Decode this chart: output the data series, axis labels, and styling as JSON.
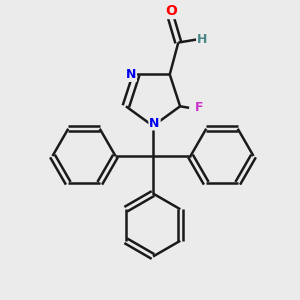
{
  "background_color": "#ebebeb",
  "bond_color": "#1a1a1a",
  "atom_colors": {
    "O": "#ff0000",
    "N": "#0000ee",
    "F": "#cc33cc",
    "C": "#1a1a1a",
    "H": "#4a8888"
  },
  "figsize": [
    3.0,
    3.0
  ],
  "dpi": 100,
  "xlim": [
    0,
    10
  ],
  "ylim": [
    0,
    10
  ]
}
